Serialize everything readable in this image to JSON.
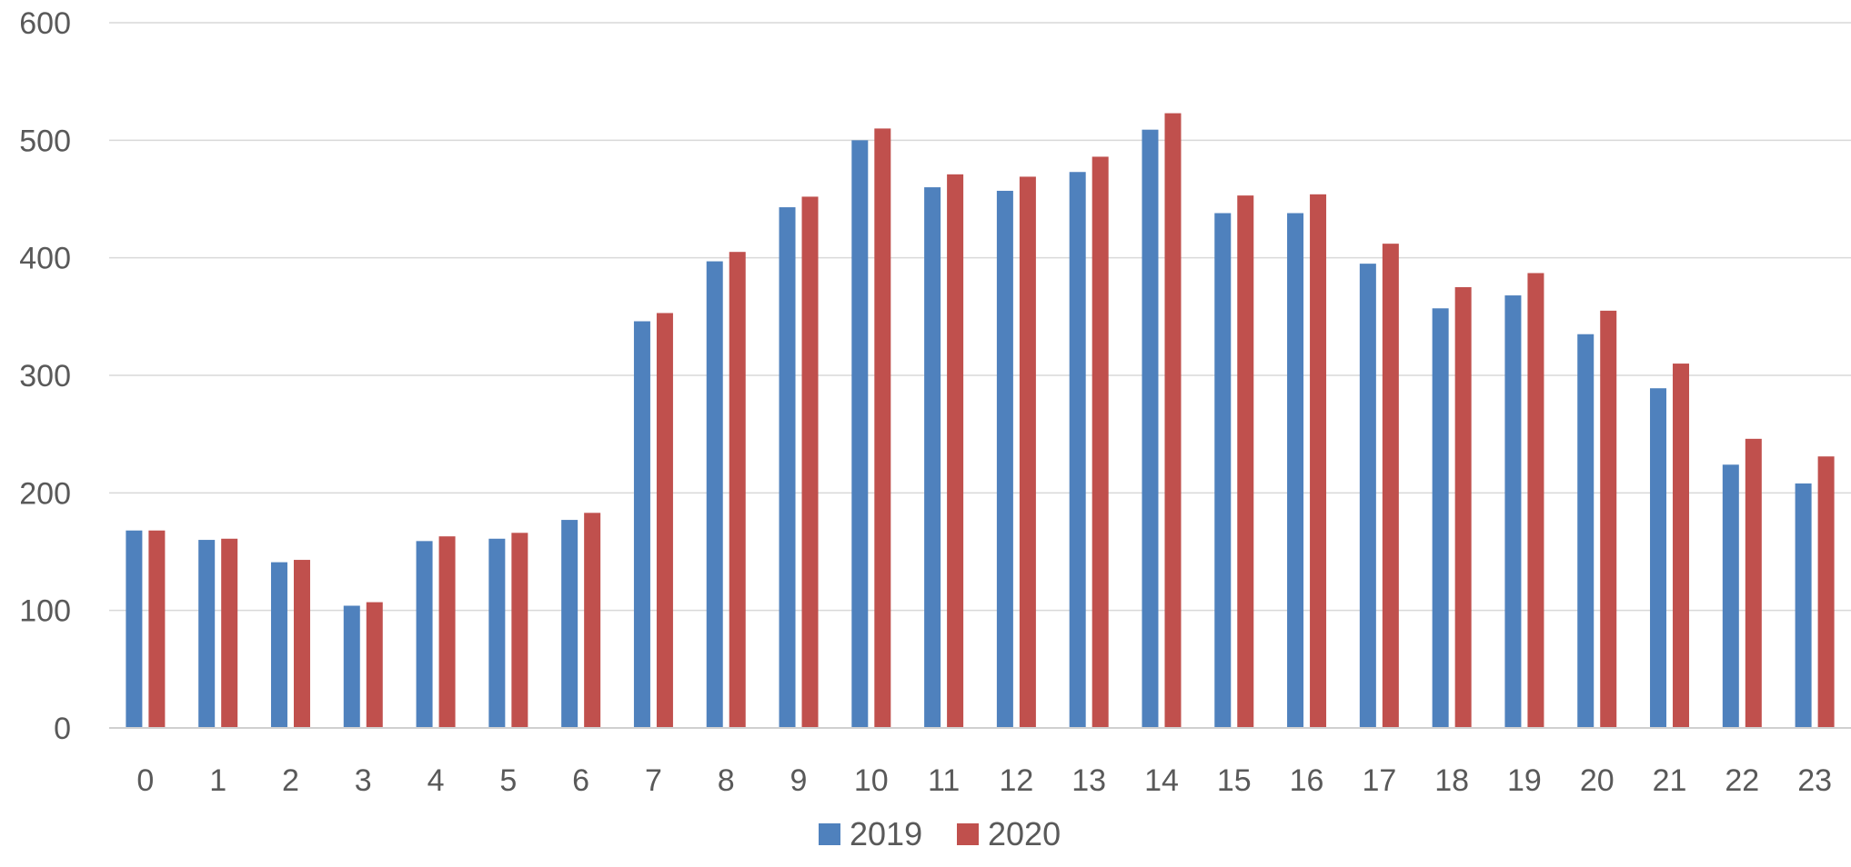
{
  "chart_data": {
    "type": "bar",
    "title": "",
    "xlabel": "",
    "ylabel": "",
    "ylim": [
      0,
      600
    ],
    "yticks": [
      0,
      100,
      200,
      300,
      400,
      500,
      600
    ],
    "grid": true,
    "legend_position": "bottom",
    "categories": [
      "0",
      "1",
      "2",
      "3",
      "4",
      "5",
      "6",
      "7",
      "8",
      "9",
      "10",
      "11",
      "12",
      "13",
      "14",
      "15",
      "16",
      "17",
      "18",
      "19",
      "20",
      "21",
      "22",
      "23"
    ],
    "series": [
      {
        "name": "2019",
        "color": "#4f81bd",
        "values": [
          168,
          160,
          141,
          104,
          159,
          161,
          177,
          346,
          397,
          443,
          500,
          460,
          457,
          473,
          509,
          438,
          438,
          395,
          357,
          368,
          335,
          289,
          224,
          208
        ]
      },
      {
        "name": "2020",
        "color": "#c0504d",
        "values": [
          168,
          161,
          143,
          107,
          163,
          166,
          183,
          353,
          405,
          452,
          510,
          471,
          469,
          486,
          523,
          453,
          454,
          412,
          375,
          387,
          355,
          310,
          246,
          231
        ]
      }
    ]
  }
}
